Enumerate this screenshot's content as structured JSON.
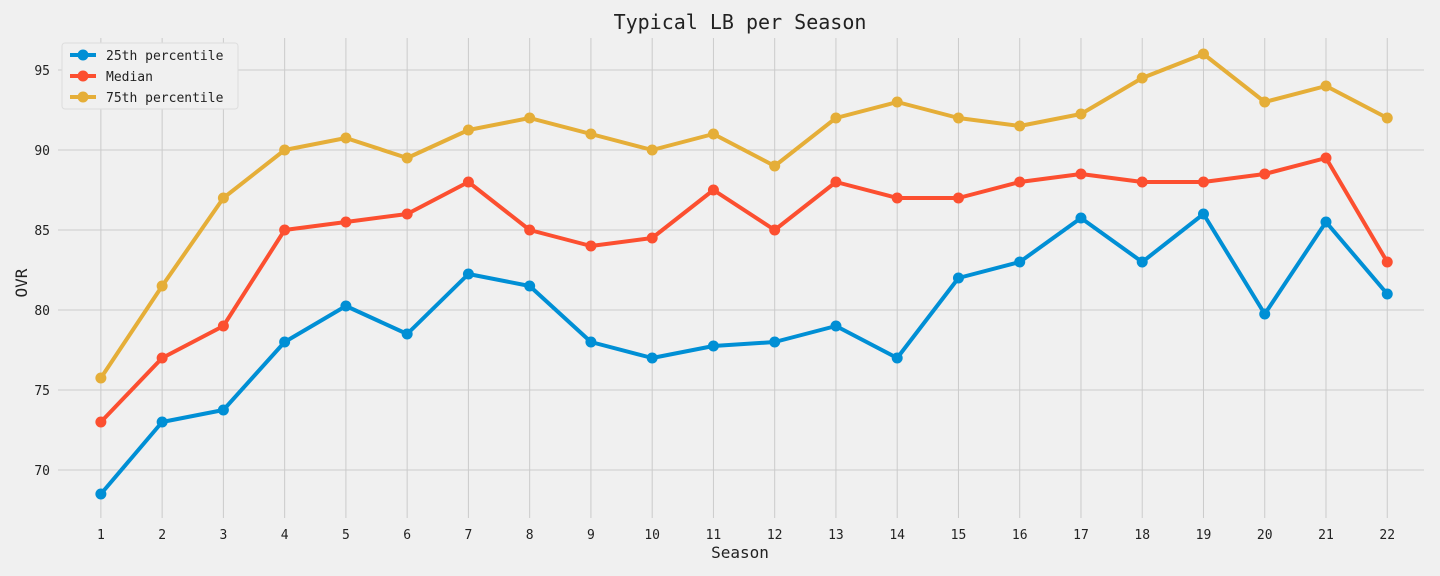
{
  "chart_data": {
    "type": "line",
    "title": "Typical LB per Season",
    "xlabel": "Season",
    "ylabel": "OVR",
    "x": [
      1,
      2,
      3,
      4,
      5,
      6,
      7,
      8,
      9,
      10,
      11,
      12,
      13,
      14,
      15,
      16,
      17,
      18,
      19,
      20,
      21,
      22
    ],
    "xlim": [
      0.3,
      22.6
    ],
    "ylim": [
      67,
      97
    ],
    "yticks": [
      70,
      75,
      80,
      85,
      90,
      95
    ],
    "grid": true,
    "legend": "top-left",
    "series": [
      {
        "name": "25th percentile",
        "color": "#008fd5",
        "values": [
          68.5,
          73,
          73.75,
          78,
          80.25,
          78.5,
          82.25,
          81.5,
          78,
          77,
          77.75,
          78,
          79,
          77,
          82,
          83,
          85.75,
          83,
          86,
          79.75,
          85.5,
          81
        ]
      },
      {
        "name": "Median",
        "color": "#fc4f30",
        "values": [
          73,
          77,
          79,
          85,
          85.5,
          86,
          88,
          85,
          84,
          84.5,
          87.5,
          85,
          88,
          87,
          87,
          88,
          88.5,
          88,
          88,
          88.5,
          89.5,
          83
        ]
      },
      {
        "name": "75th percentile",
        "color": "#e5ae38",
        "values": [
          75.75,
          81.5,
          87,
          90,
          90.75,
          89.5,
          91.25,
          92,
          91,
          90,
          91,
          89,
          92,
          93,
          92,
          91.5,
          92.25,
          94.5,
          96,
          93,
          94,
          92
        ]
      }
    ]
  }
}
